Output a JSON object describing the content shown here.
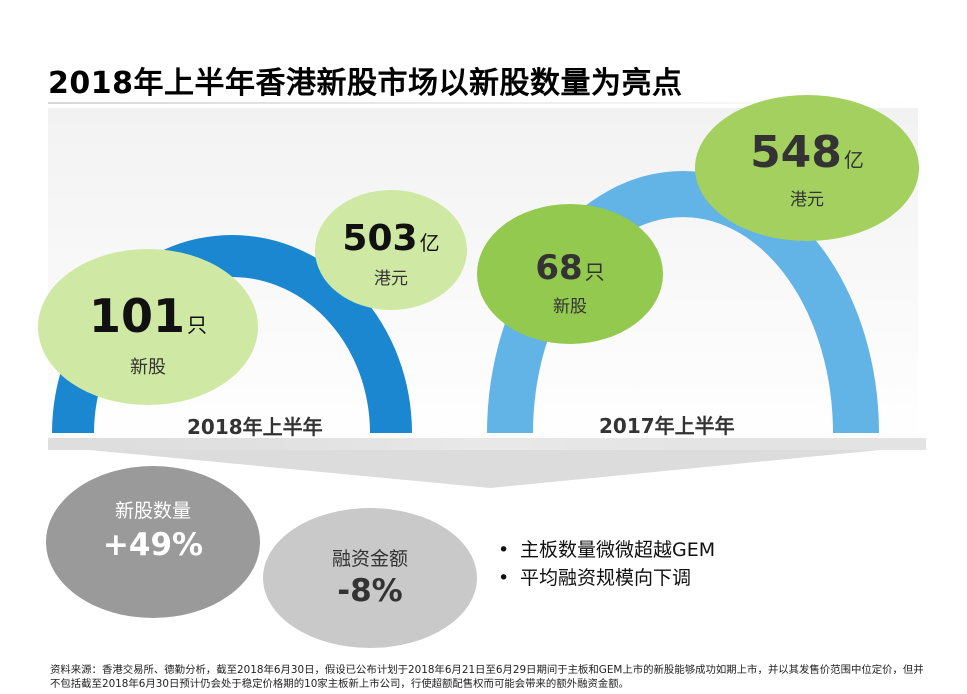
{
  "title": "2018年上半年香港新股市场以新股数量为亮点",
  "chart_data": {
    "type": "comparison",
    "periods": [
      {
        "name": "2018年上半年",
        "new_listings": {
          "value": "101",
          "unit": "只",
          "label": "新股"
        },
        "funds_raised": {
          "value": "503",
          "unit": "亿",
          "label": "港元"
        }
      },
      {
        "name": "2017年上半年",
        "new_listings": {
          "value": "68",
          "unit": "只",
          "label": "新股"
        },
        "funds_raised": {
          "value": "548",
          "unit": "亿",
          "label": "港元"
        }
      }
    ],
    "changes": [
      {
        "label": "新股数量",
        "value": "+49%"
      },
      {
        "label": "融资金额",
        "value": "-8%"
      }
    ]
  },
  "bullets": [
    "主板数量微微超越GEM",
    "平均融资规模向下调"
  ],
  "bullet_symbol": "•",
  "footnote": [
    "资料来源：香港交易所、德勤分析，截至2018年6月30日，假设已公布计划于2018年6月21日至6月29日期间于主板和GEM上市的新股能够成功如期上市，并以其发售价范围中位定价，但并",
    "不包括截至2018年6月30日预计仍会处于稳定价格期的10家主板新上市公司，行使超额配售权而可能会带来的额外融资金额。"
  ],
  "colors": {
    "arch_2018": "#1b87d0",
    "arch_2017": "#62b3e6",
    "green_light": "#cfe9a4",
    "green_mid": "#93c94f",
    "circle_dark": "#9a9a9a",
    "circle_light": "#c9c9c9"
  }
}
